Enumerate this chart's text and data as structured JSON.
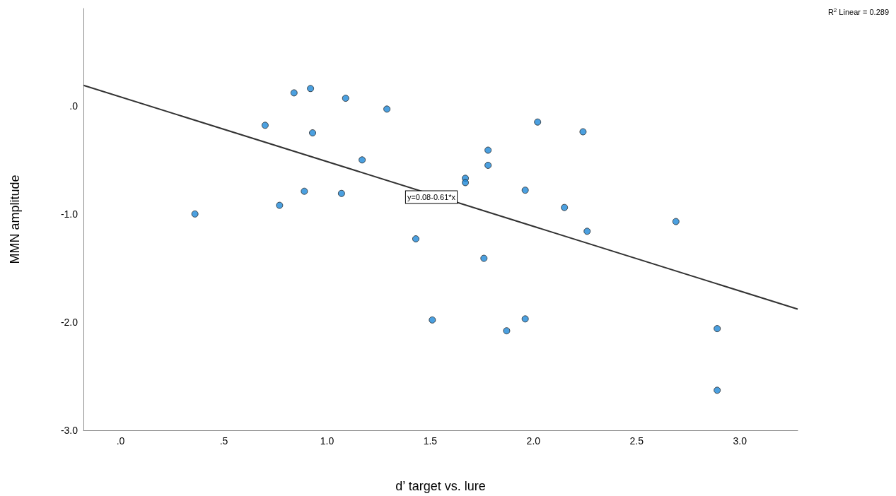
{
  "chart_data": {
    "type": "scatter",
    "xlabel": "d’ target vs. lure",
    "ylabel": "MMN amplitude",
    "annotations": [
      "R$^{2}$ Linear = 0.289",
      "y=0.08-0.61*x"
    ],
    "series": [
      {
        "type": "scatter",
        "color": "#1e88d8",
        "x": [
          0.36,
          0.7,
          0.77,
          0.84,
          0.89,
          0.92,
          0.93,
          1.07,
          1.09,
          1.17,
          1.29,
          1.43,
          1.51,
          1.67,
          1.67,
          1.76,
          1.78,
          1.78,
          1.87,
          1.96,
          1.96,
          2.02,
          2.15,
          2.24,
          2.26,
          2.69,
          2.89,
          2.89
        ],
        "values": [
          -1.0,
          -0.18,
          -0.92,
          0.12,
          -0.79,
          0.16,
          -0.25,
          -0.81,
          0.07,
          -0.5,
          -0.03,
          -1.23,
          -1.98,
          -0.67,
          -0.71,
          -1.41,
          -0.41,
          -0.55,
          -2.08,
          -0.78,
          -1.97,
          -0.15,
          -0.94,
          -0.24,
          -1.16,
          -1.07,
          -2.06,
          -2.63
        ]
      },
      {
        "type": "line",
        "color": "#333333",
        "marker": "none",
        "x": [
          -0.18,
          3.28
        ],
        "values": [
          0.19,
          -1.88
        ]
      }
    ],
    "marker": "circle",
    "grid": false,
    "xlim": [
      -0.18,
      3.28
    ],
    "xticks": [
      {
        "value": 0,
        "label": ".0"
      },
      {
        "value": 0.5,
        "label": ".5"
      },
      {
        "value": 1,
        "label": "1.0"
      },
      {
        "value": 1.5,
        "label": "1.5"
      },
      {
        "value": 2,
        "label": "2.0"
      },
      {
        "value": 2.5,
        "label": "2.5"
      },
      {
        "value": 3,
        "label": "3.0"
      }
    ],
    "ylim": [
      -3,
      0.9
    ],
    "yticks": [
      {
        "value": -3,
        "label": "-3.0"
      },
      {
        "value": -2,
        "label": "-2.0"
      },
      {
        "value": -1,
        "label": "-1.0"
      },
      {
        "value": 0,
        "label": ".0"
      }
    ]
  }
}
